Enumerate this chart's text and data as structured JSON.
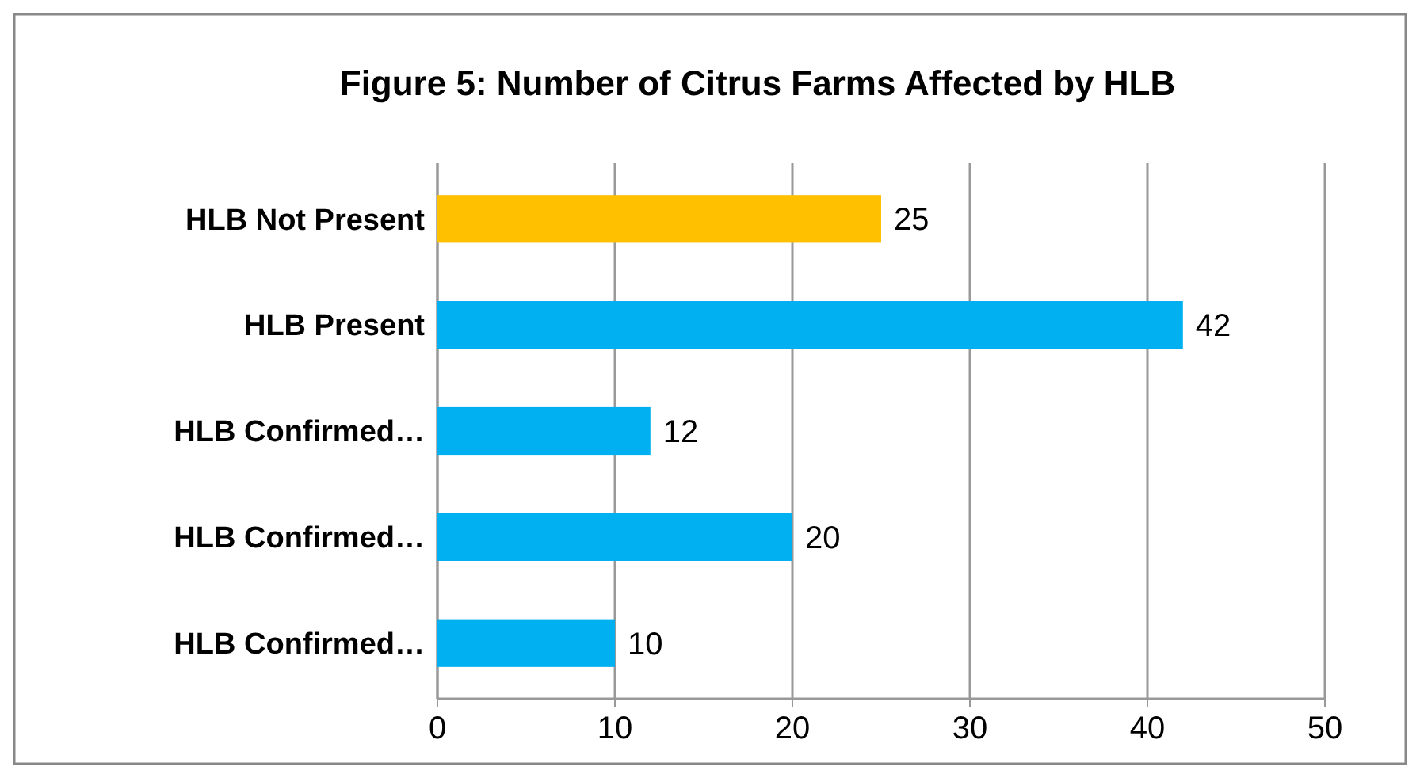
{
  "chart_data": {
    "type": "bar",
    "orientation": "horizontal",
    "title": "Figure 5: Number of Citrus Farms Affected by HLB",
    "categories": [
      "HLB Not Present",
      "HLB Present",
      "HLB Confirmed…",
      "HLB Confirmed…",
      "HLB Confirmed…"
    ],
    "values": [
      25,
      42,
      12,
      20,
      10
    ],
    "colors": [
      "#ffc000",
      "#00b0f0",
      "#00b0f0",
      "#00b0f0",
      "#00b0f0"
    ],
    "xlim": [
      0,
      50
    ],
    "xticks": [
      0,
      10,
      20,
      30,
      40,
      50
    ],
    "grid": "x",
    "data_labels": true
  }
}
